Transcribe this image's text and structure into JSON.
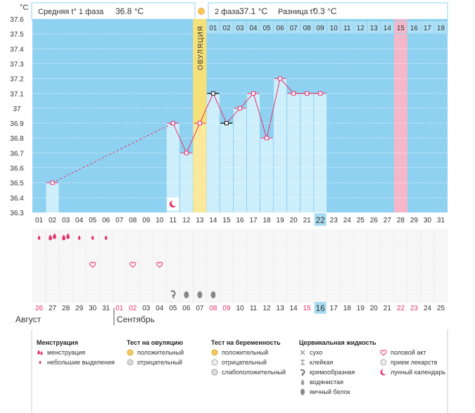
{
  "header": {
    "phase1_label": "Средняя t° 1 фаза",
    "phase1_value": "36.8 °C",
    "phase2_label": "2 фаза",
    "phase2_value": "37.1 °C",
    "diff_label": "Разница t°",
    "diff_value": "0.3 °C"
  },
  "colors": {
    "background": "#8fd1f0",
    "temp_column": "#cdeefb",
    "ovulation": "#fbe99b",
    "ovulation_top": "#f6e07a",
    "day_header": "#aee0f5",
    "highlight_day": "#f6b6c9",
    "line": "#e8336e",
    "dashed": "#e8336e",
    "today_box": "#a9dcf2"
  },
  "chart_data": {
    "type": "line",
    "ylabel": "°C",
    "ylim": [
      36.3,
      37.6
    ],
    "yticks": [
      "37.6",
      "37.5",
      "37.4",
      "37.3",
      "37.2",
      "37.1",
      "37",
      "36.9",
      "36.8",
      "36.7",
      "36.6",
      "36.5",
      "36.4",
      "36.3"
    ],
    "grid": true,
    "ovulation_label": "ОВУЛЯЦИЯ",
    "ovulation_cycle_day": 13,
    "cycle_days": [
      "01",
      "02",
      "03",
      "04",
      "05",
      "06",
      "07",
      "08",
      "09",
      "10",
      "11",
      "12",
      "13",
      "14",
      "15",
      "16",
      "17",
      "18",
      "19",
      "20",
      "21",
      "22",
      "23",
      "24",
      "25",
      "26",
      "27",
      "28",
      "29",
      "30",
      "31"
    ],
    "today_cycle_day": 22,
    "phase2_header_days": [
      "01",
      "02",
      "03",
      "04",
      "05",
      "06",
      "07",
      "08",
      "09",
      "10",
      "11",
      "12",
      "13",
      "14",
      "15",
      "16",
      "17",
      "18"
    ],
    "highlight_phase2_day": "15",
    "temperatures": [
      {
        "day": 2,
        "value": 36.5,
        "marker": "circle"
      },
      {
        "day": 11,
        "value": 36.9,
        "marker": "circle"
      },
      {
        "day": 12,
        "value": 36.7,
        "marker": "circle"
      },
      {
        "day": 13,
        "value": 36.9,
        "marker": "circle"
      },
      {
        "day": 14,
        "value": 37.1,
        "marker": "square"
      },
      {
        "day": 15,
        "value": 36.9,
        "marker": "square"
      },
      {
        "day": 16,
        "value": 37.0,
        "marker": "circle"
      },
      {
        "day": 17,
        "value": 37.1,
        "marker": "circle"
      },
      {
        "day": 18,
        "value": 36.8,
        "marker": "circle"
      },
      {
        "day": 19,
        "value": 37.2,
        "marker": "circle"
      },
      {
        "day": 20,
        "value": 37.1,
        "marker": "circle"
      },
      {
        "day": 21,
        "value": 37.1,
        "marker": "circle"
      },
      {
        "day": 22,
        "value": 37.1,
        "marker": "circle"
      }
    ],
    "dashed_segment": [
      2,
      11
    ],
    "moon_cycle_day": 11,
    "date_row": [
      {
        "d": "26",
        "red": true
      },
      {
        "d": "27"
      },
      {
        "d": "28"
      },
      {
        "d": "29"
      },
      {
        "d": "30"
      },
      {
        "d": "31"
      },
      {
        "d": "01",
        "red": true
      },
      {
        "d": "02",
        "red": true
      },
      {
        "d": "03"
      },
      {
        "d": "04"
      },
      {
        "d": "05"
      },
      {
        "d": "06"
      },
      {
        "d": "07"
      },
      {
        "d": "08",
        "red": true
      },
      {
        "d": "09",
        "red": true
      },
      {
        "d": "10"
      },
      {
        "d": "11"
      },
      {
        "d": "12"
      },
      {
        "d": "13"
      },
      {
        "d": "14"
      },
      {
        "d": "15",
        "red": true
      },
      {
        "d": "16",
        "today": true
      },
      {
        "d": "17"
      },
      {
        "d": "18"
      },
      {
        "d": "19"
      },
      {
        "d": "20"
      },
      {
        "d": "21"
      },
      {
        "d": "22",
        "red": true
      },
      {
        "d": "23",
        "red": true
      },
      {
        "d": "24"
      },
      {
        "d": "25"
      }
    ],
    "month1": "Август",
    "month2": "Сентябрь",
    "marks": {
      "menstruation_heavy": [
        2,
        3
      ],
      "menstruation_light": [
        1,
        4,
        5,
        6
      ],
      "intercourse": [
        5,
        8,
        10
      ],
      "fluid_creamy": [
        11
      ],
      "fluid_egg_white": [
        12,
        13,
        14
      ]
    }
  },
  "legend": {
    "groups": [
      {
        "title": "Менструация",
        "items": [
          {
            "icon": "drop-heavy-icon",
            "label": "менструация"
          },
          {
            "icon": "drop-light-icon",
            "label": "небольшие выделения"
          }
        ]
      },
      {
        "title": "Тест на овуляцию",
        "items": [
          {
            "icon": "test-positive-icon",
            "label": "положительный"
          },
          {
            "icon": "test-negative-icon",
            "label": "отрицательный"
          }
        ]
      },
      {
        "title": "Тест на беременность",
        "items": [
          {
            "icon": "preg-positive-icon",
            "label": "положительный"
          },
          {
            "icon": "preg-negative-icon",
            "label": "отрицательный"
          },
          {
            "icon": "preg-weak-icon",
            "label": "слабоположительный"
          }
        ]
      },
      {
        "title": "Цервикальная жидкость",
        "items": [
          {
            "icon": "dry-icon",
            "label": "сухо"
          },
          {
            "icon": "sticky-icon",
            "label": "клейкая"
          },
          {
            "icon": "creamy-icon",
            "label": "кремообразная"
          },
          {
            "icon": "watery-icon",
            "label": "водянистая"
          },
          {
            "icon": "egg-white-icon",
            "label": "яичный белок"
          }
        ]
      },
      {
        "title": "",
        "items": [
          {
            "icon": "heart-icon",
            "label": "половой акт"
          },
          {
            "icon": "pill-icon",
            "label": "прием лекарств"
          },
          {
            "icon": "moon-icon",
            "label": "лунный календарь"
          }
        ]
      }
    ]
  }
}
